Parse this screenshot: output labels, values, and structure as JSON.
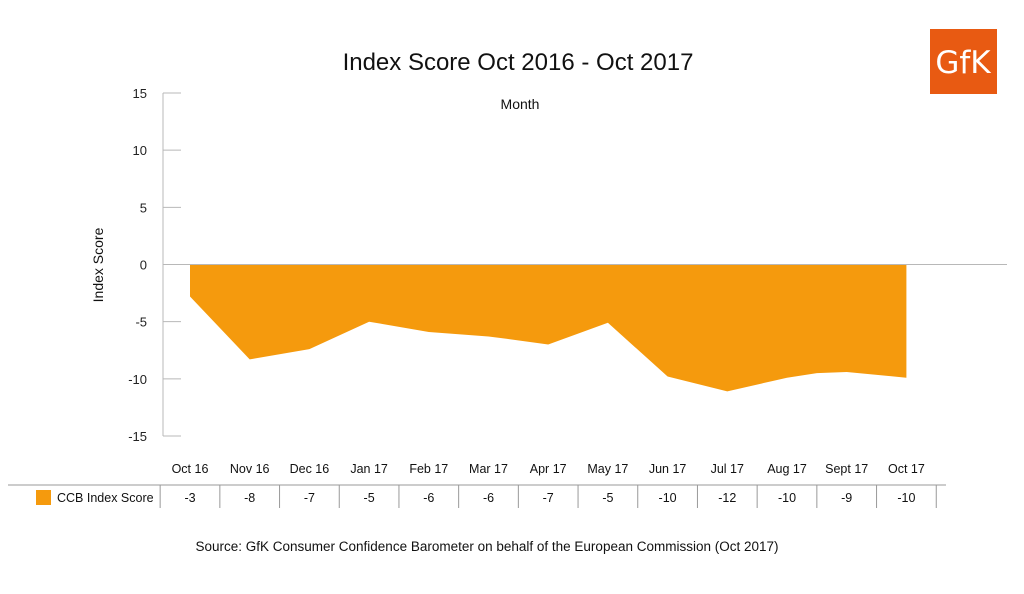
{
  "logo": {
    "text": "GfK",
    "color": "#e85a12"
  },
  "chart_data": {
    "type": "area",
    "title": "Index Score Oct 2016 - Oct 2017",
    "subtitle": "Month",
    "ylabel": "Index Score",
    "ylim": [
      -15,
      15
    ],
    "yticks": [
      15,
      10,
      5,
      0,
      -5,
      -10,
      -15
    ],
    "categories": [
      "Oct 16",
      "Nov 16",
      "Dec 16",
      "Jan 17",
      "Feb 17",
      "Mar 17",
      "Apr 17",
      "May 17",
      "Jun 17",
      "Jul 17",
      "Aug 17",
      "Sept 17",
      "Oct 17"
    ],
    "x": [
      0,
      1,
      2,
      3,
      4,
      4.5,
      5,
      5.3,
      6,
      7,
      8,
      9,
      10,
      10.5,
      11,
      12
    ],
    "y": [
      -2.8,
      -8.3,
      -7.4,
      -5.0,
      -5.9,
      -6.1,
      -6.3,
      -6.5,
      -7.0,
      -5.1,
      -9.8,
      -11.1,
      -9.9,
      -9.5,
      -9.4,
      -9.9
    ],
    "series": [
      {
        "name": "CCB Index Score",
        "color": "#f59a0d",
        "values": [
          -3,
          -8,
          -7,
          -5,
          -6,
          -6,
          -7,
          -5,
          -10,
          -12,
          -10,
          -9,
          -10
        ]
      }
    ],
    "grid": false,
    "legend": "table-left"
  },
  "source": "Source: GfK Consumer Confidence Barometer on behalf of the European Commission (Oct 2017)"
}
